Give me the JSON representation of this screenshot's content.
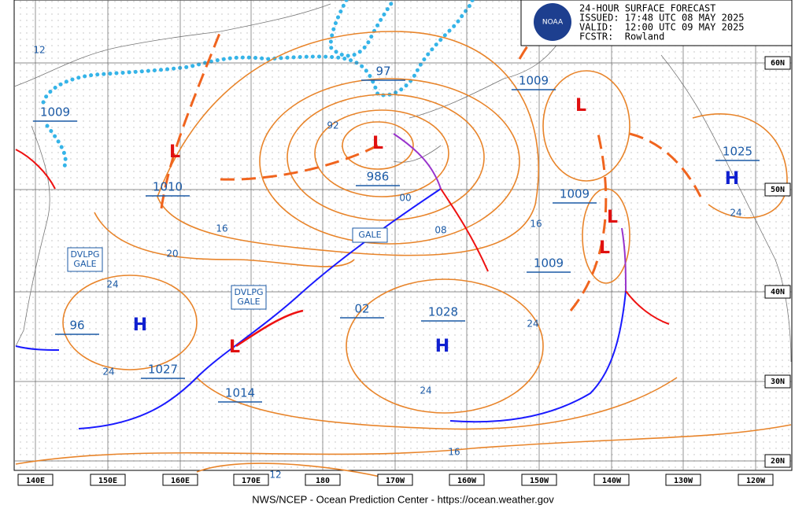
{
  "header": {
    "lines": [
      "24-HOUR SURFACE FORECAST",
      "ISSUED: 17:48 UTC 08 MAY 2025",
      "VALID:  12:00 UTC 09 MAY 2025",
      "FCSTR:  Rowland"
    ],
    "logo": "NOAA"
  },
  "footer": "NWS/NCEP - Ocean Prediction Center - https://ocean.weather.gov",
  "lon_labels": [
    "140E",
    "150E",
    "160E",
    "170E",
    "180",
    "170W",
    "160W",
    "150W",
    "140W",
    "130W",
    "120W"
  ],
  "lat_labels": [
    "60N",
    "50N",
    "40N",
    "30N",
    "20N"
  ],
  "pressure_labels": [
    "1009",
    "97",
    "1009",
    "1010",
    "986",
    "1025",
    "1009",
    "1009",
    "1028",
    "02",
    "96",
    "1027",
    "1014"
  ],
  "isobar_labels": [
    "12",
    "92",
    "00",
    "08",
    "16",
    "16",
    "20",
    "24",
    "24",
    "24",
    "24",
    "24",
    "16",
    "12"
  ],
  "centers": [
    "H",
    "H",
    "H",
    "L",
    "L",
    "L",
    "L",
    "L",
    "L"
  ],
  "warnings": [
    {
      "lines": [
        "GALE"
      ]
    },
    {
      "lines": [
        "DVLPG",
        "GALE"
      ]
    },
    {
      "lines": [
        "DVLPG",
        "GALE"
      ]
    }
  ]
}
